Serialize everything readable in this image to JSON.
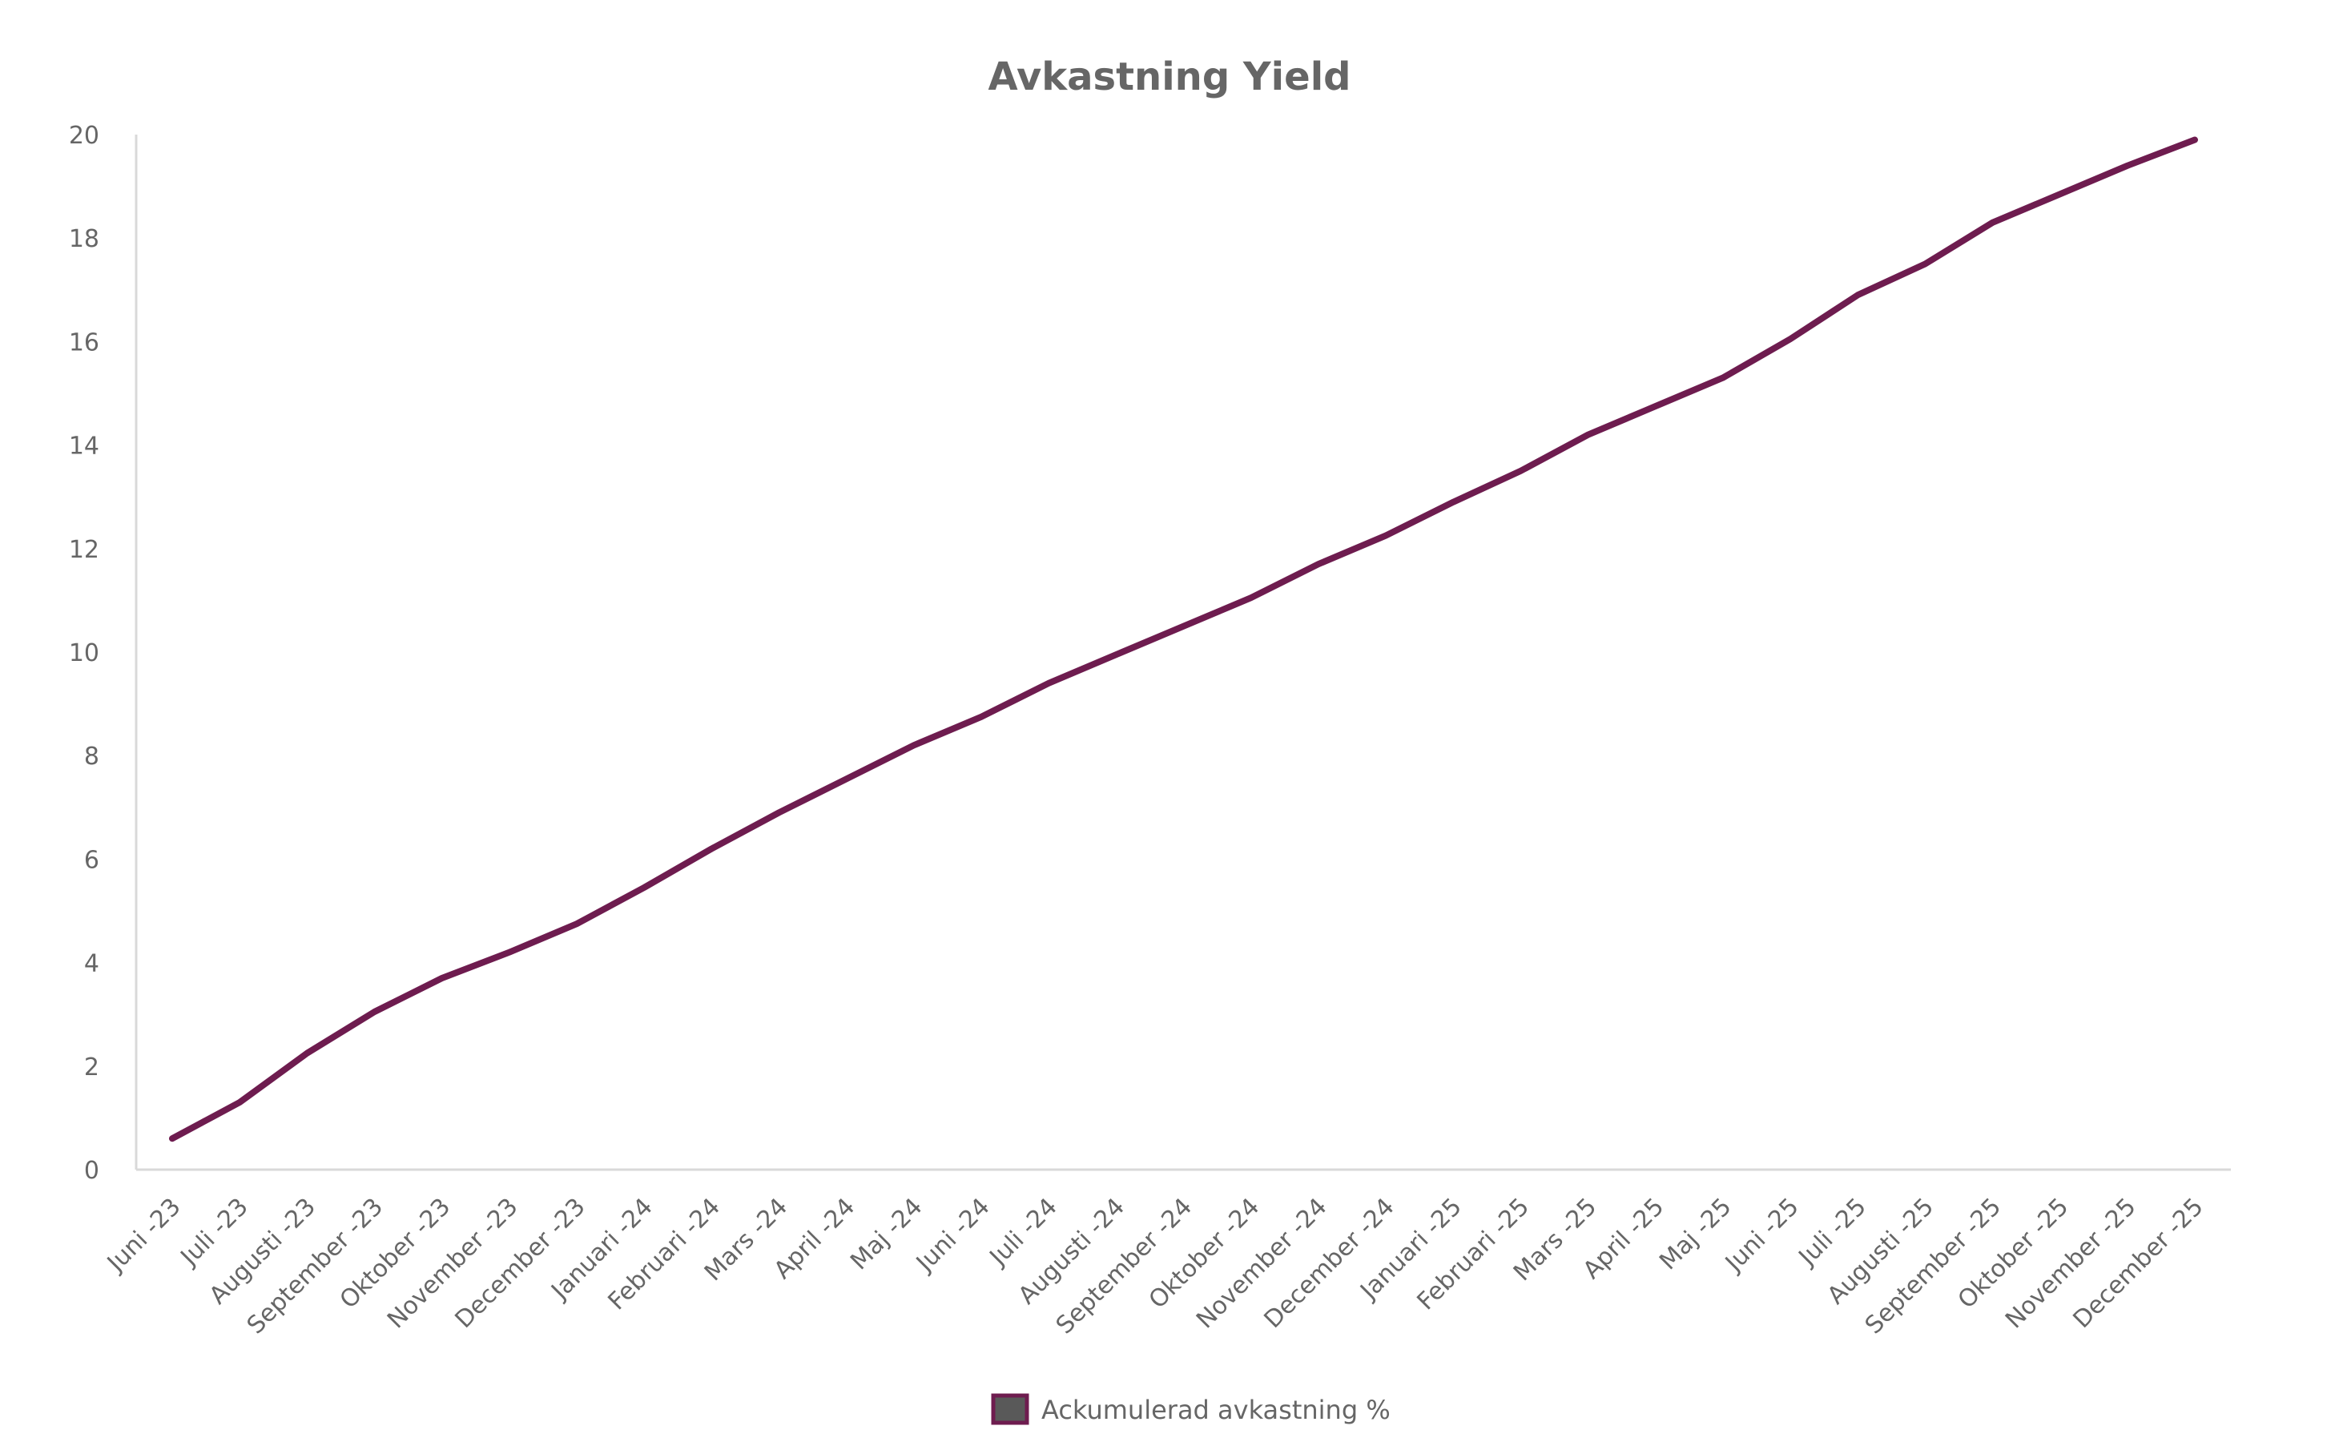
{
  "chart_data": {
    "type": "line",
    "title": "Avkastning Yield",
    "xlabel": "",
    "ylabel": "",
    "ylim": [
      0,
      20
    ],
    "yticks": [
      0,
      2,
      4,
      6,
      8,
      10,
      12,
      14,
      16,
      18,
      20
    ],
    "grid": false,
    "legend_position": "bottom",
    "categories": [
      "Juni -23",
      "Juli -23",
      "Augusti -23",
      "September -23",
      "Oktober -23",
      "November -23",
      "December -23",
      "Januari -24",
      "Februari -24",
      "Mars -24",
      "April -24",
      "Maj -24",
      "Juni -24",
      "Juli -24",
      "Augusti -24",
      "September -24",
      "Oktober -24",
      "November -24",
      "December -24",
      "Januari -25",
      "Februari -25",
      "Mars -25",
      "April -25",
      "Maj -25",
      "Juni -25",
      "Juli -25",
      "Augusti -25",
      "September -25",
      "Oktober -25",
      "November -25",
      "December -25"
    ],
    "series": [
      {
        "name": "Ackumulerad avkastning %",
        "color": "#6e1c4f",
        "values": [
          0.6,
          1.3,
          2.25,
          3.05,
          3.7,
          4.2,
          4.75,
          5.45,
          6.2,
          6.9,
          7.55,
          8.2,
          8.75,
          9.4,
          9.95,
          10.5,
          11.05,
          11.7,
          12.25,
          12.9,
          13.5,
          14.2,
          14.75,
          15.3,
          16.05,
          16.9,
          17.5,
          18.3,
          18.85,
          19.4,
          19.9
        ]
      }
    ],
    "colors": {
      "axis": "#d9d9d9",
      "text": "#666666",
      "legend_fill": "#595959"
    }
  }
}
